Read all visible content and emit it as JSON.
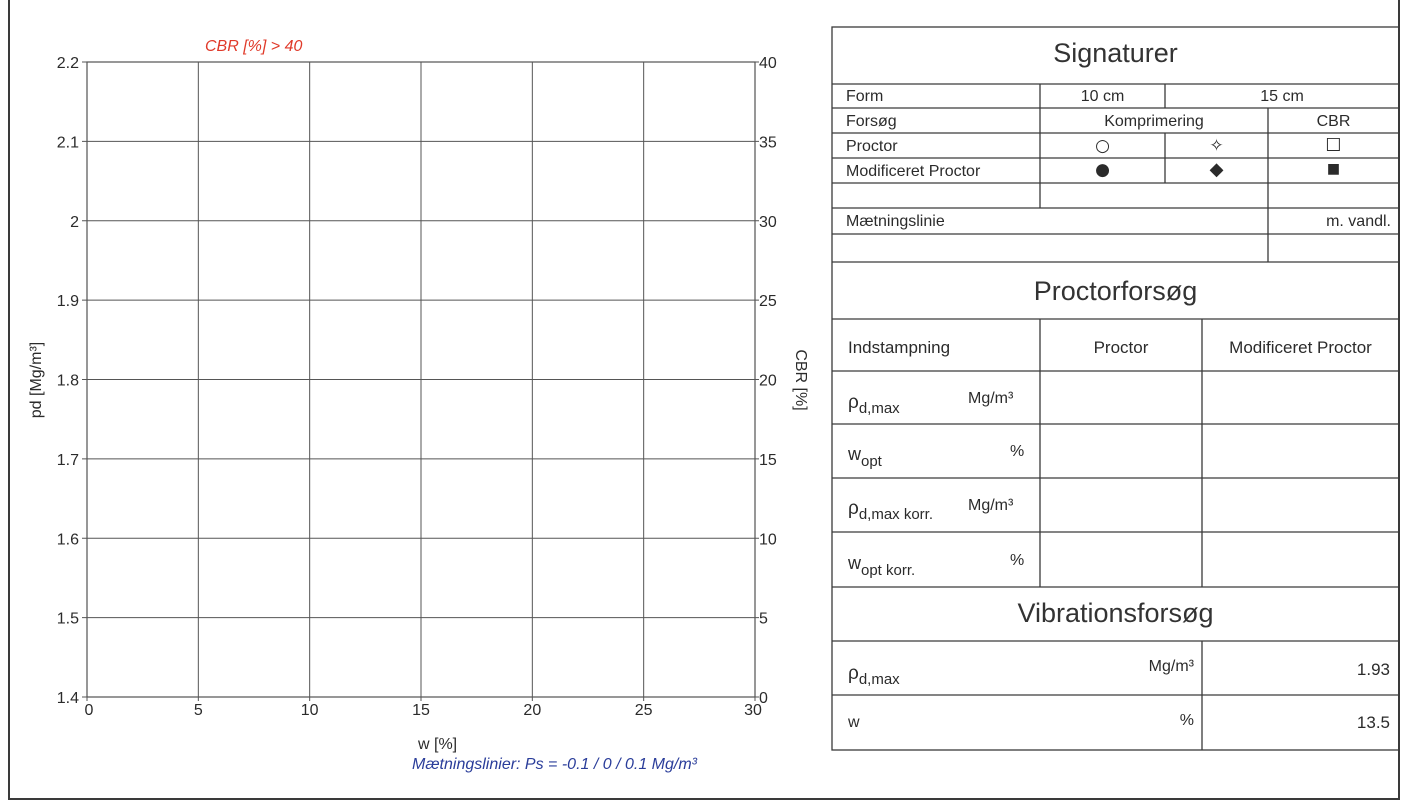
{
  "chart_data": {
    "type": "scatter",
    "title": "CBR [%] > 40",
    "xlabel": "w [%]",
    "ylabel": "pd [Mg/m³]",
    "y2label": "CBR [%]",
    "xlim": [
      0,
      30
    ],
    "ylim": [
      1.4,
      2.2
    ],
    "y2lim": [
      0,
      40
    ],
    "x_ticks": [
      "0",
      "5",
      "10",
      "15",
      "20",
      "25",
      "30"
    ],
    "y_ticks": [
      "1.4",
      "1.5",
      "1.6",
      "1.7",
      "1.8",
      "1.9",
      "2",
      "2.1",
      "2.2"
    ],
    "y2_ticks": [
      "0",
      "5",
      "10",
      "15",
      "20",
      "25",
      "30",
      "35",
      "40"
    ],
    "grid": true,
    "series": [],
    "footnote": "Mætningslinier: Ps = -0.1 / 0 / 0.1 Mg/m³",
    "colors": {
      "title": "#e03a2a",
      "footnote": "#2a3d9a",
      "grid": "#555555"
    }
  },
  "signaturer": {
    "heading": "Signaturer",
    "form_label": "Form",
    "form_10": "10 cm",
    "form_15": "15 cm",
    "forsog_label": "Forsøg",
    "komprimering": "Komprimering",
    "cbr": "CBR",
    "proctor_label": "Proctor",
    "proctor_sym": [
      "○",
      "✧",
      "☐"
    ],
    "mod_proctor_label": "Modificeret Proctor",
    "mod_proctor_sym": [
      "●",
      "◆",
      "■"
    ],
    "maetning_label": "Mætningslinie",
    "m_vandl": "m. vandl."
  },
  "proctor": {
    "heading": "Proctorforsøg",
    "indstampning": "Indstampning",
    "col_proctor": "Proctor",
    "col_mod": "Modificeret Proctor",
    "rows": [
      {
        "sym": "ρ",
        "sub": "d,max",
        "unit": "Mg/m³"
      },
      {
        "sym": "w",
        "sub": "opt",
        "unit": "%"
      },
      {
        "sym": "ρ",
        "sub": "d,max korr.",
        "unit": "Mg/m³"
      },
      {
        "sym": "w",
        "sub": "opt korr.",
        "unit": "%"
      }
    ]
  },
  "vibration": {
    "heading": "Vibrationsforsøg",
    "rows": [
      {
        "sym": "ρ",
        "sub": "d,max",
        "unit": "Mg/m³",
        "value": "1.93"
      },
      {
        "sym": "w",
        "sub": "",
        "unit": "%",
        "value": "13.5"
      }
    ]
  }
}
